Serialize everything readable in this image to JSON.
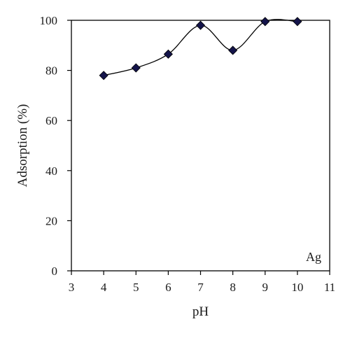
{
  "chart_data": {
    "type": "line",
    "title": "",
    "xlabel": "pH",
    "ylabel": "Adsorption (%)",
    "xlim": [
      3,
      11
    ],
    "ylim": [
      0,
      100
    ],
    "xticks": [
      3,
      4,
      5,
      6,
      7,
      8,
      9,
      10,
      11
    ],
    "yticks": [
      0,
      20,
      40,
      60,
      80,
      100
    ],
    "grid": false,
    "annotation": "Ag",
    "series": [
      {
        "x": [
          4,
          5,
          6,
          7,
          8,
          9,
          10
        ],
        "y": [
          78,
          81,
          86.5,
          98,
          88,
          99.5,
          99.5
        ],
        "marker": "diamond",
        "line": "smooth",
        "color": "#000000",
        "marker_fill": "#14144a"
      }
    ]
  }
}
